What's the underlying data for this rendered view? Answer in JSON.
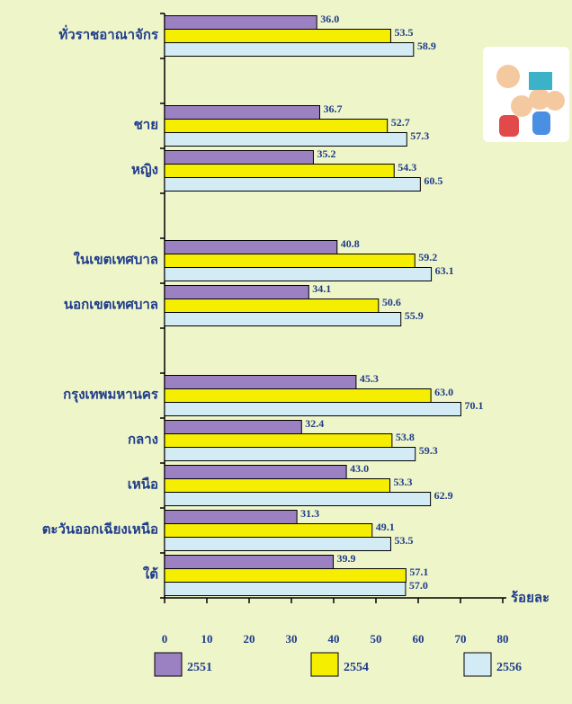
{
  "chart_data": {
    "type": "bar",
    "orientation": "horizontal",
    "categories": [
      "ทั่วราชอาณาจักร",
      null,
      "ชาย",
      "หญิง",
      null,
      "ในเขตเทศบาล",
      "นอกเขตเทศบาล",
      null,
      "กรุงเทพมหานคร",
      "กลาง",
      "เหนือ",
      "ตะวันออกเฉียงเหนือ",
      "ใต้"
    ],
    "series": [
      {
        "name": "2551",
        "color": "#9b80c2",
        "values": [
          36.0,
          null,
          36.7,
          35.2,
          null,
          40.8,
          34.1,
          null,
          45.3,
          32.4,
          43.0,
          31.3,
          39.9
        ],
        "value_labels": [
          "36.0",
          null,
          "36.7",
          "35.2",
          null,
          "40.8",
          "34.1",
          null,
          "45.3",
          "32.4",
          "43.0",
          "31.3",
          "39.9"
        ]
      },
      {
        "name": "2554",
        "color": "#f5ee00",
        "values": [
          53.5,
          null,
          52.7,
          54.3,
          null,
          59.2,
          50.6,
          null,
          63.0,
          53.8,
          53.3,
          49.1,
          57.1
        ],
        "value_labels": [
          "53.5",
          null,
          "52.7",
          "54.3",
          null,
          "59.2",
          "50.6",
          null,
          "63.0",
          "53.8",
          "53.3",
          "49.1",
          "57.1"
        ]
      },
      {
        "name": "2556",
        "color": "#d3ebf4",
        "values": [
          58.9,
          null,
          57.3,
          60.5,
          null,
          63.1,
          55.9,
          null,
          70.1,
          59.3,
          62.9,
          53.5,
          57.0
        ],
        "value_labels": [
          "58.9",
          null,
          "57.3",
          "60.5",
          null,
          "63.1",
          "55.9",
          null,
          "70.1",
          "59.3",
          "62.9",
          "53.5",
          "57.0"
        ]
      }
    ],
    "x_label": "ร้อยละ",
    "xlim": [
      0,
      80
    ],
    "xticks": [
      0,
      10,
      20,
      30,
      40,
      50,
      60,
      70,
      80
    ]
  }
}
